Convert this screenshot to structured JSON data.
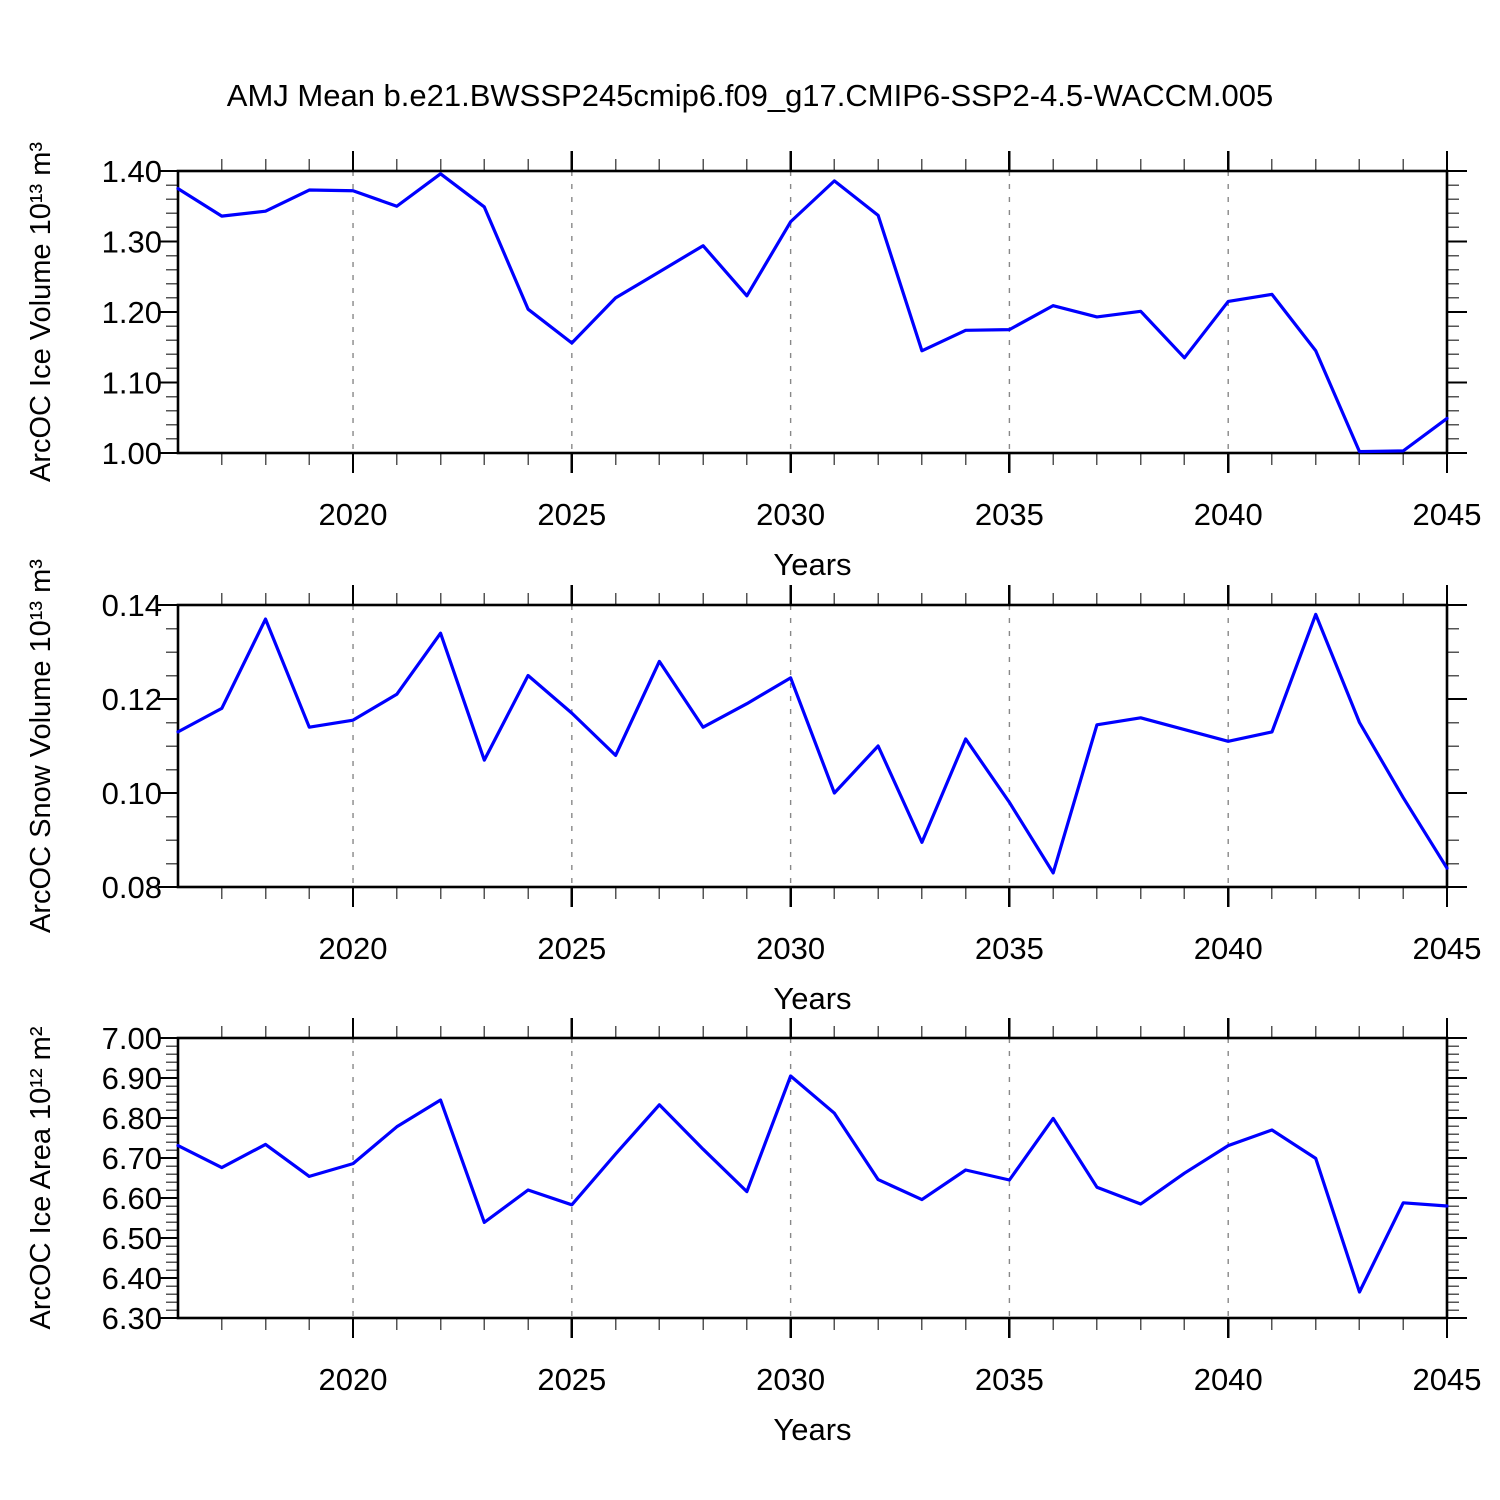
{
  "chart_data": {
    "type": "line",
    "title": "AMJ Mean b.e21.BWSSP245cmip6.f09_g17.CMIP6-SSP2-4.5-WACCM.005",
    "xlabel": "Years",
    "xlim": [
      2016,
      2045
    ],
    "x": [
      2016,
      2017,
      2018,
      2019,
      2020,
      2021,
      2022,
      2023,
      2024,
      2025,
      2026,
      2027,
      2028,
      2029,
      2030,
      2031,
      2032,
      2033,
      2034,
      2035,
      2036,
      2037,
      2038,
      2039,
      2040,
      2041,
      2042,
      2043,
      2044,
      2045
    ],
    "x_major_ticks": [
      2020,
      2025,
      2030,
      2035,
      2040,
      2045
    ],
    "x_minor_step": 1,
    "x_gridlines": [
      2020,
      2025,
      2030,
      2035,
      2040
    ],
    "grid_style": "dashed",
    "legend": "none",
    "colors": {
      "line": "#0000ff",
      "frame": "#000000",
      "gridline": "#888888",
      "minor_tick": "#555555"
    },
    "panels": [
      {
        "name": "ice-volume",
        "ylabel": "ArcOC Ice Volume 10¹³ m³",
        "ylim": [
          1.0,
          1.4
        ],
        "y_major_step": 0.1,
        "y_minor_step": 0.02,
        "y_label_decimals": 2,
        "values": [
          1.375,
          1.336,
          1.343,
          1.373,
          1.372,
          1.35,
          1.396,
          1.349,
          1.204,
          1.156,
          1.22,
          1.257,
          1.294,
          1.223,
          1.328,
          1.386,
          1.337,
          1.145,
          1.174,
          1.175,
          1.209,
          1.193,
          1.201,
          1.135,
          1.215,
          1.225,
          1.145,
          1.002,
          1.003,
          1.049
        ]
      },
      {
        "name": "snow-volume",
        "ylabel": "ArcOC Snow Volume 10¹³ m³",
        "ylim": [
          0.08,
          0.14
        ],
        "y_major_step": 0.02,
        "y_minor_step": 0.005,
        "y_label_decimals": 2,
        "values": [
          0.113,
          0.118,
          0.137,
          0.114,
          0.1155,
          0.121,
          0.134,
          0.107,
          0.125,
          0.117,
          0.108,
          0.128,
          0.114,
          0.119,
          0.1245,
          0.1,
          0.11,
          0.0895,
          0.1115,
          0.098,
          0.083,
          0.1145,
          0.116,
          0.1135,
          0.111,
          0.113,
          0.138,
          0.115,
          0.099,
          0.084
        ]
      },
      {
        "name": "ice-area",
        "ylabel": "ArcOC Ice Area 10¹² m²",
        "ylim": [
          6.3,
          7.0
        ],
        "y_major_step": 0.1,
        "y_minor_step": 0.02,
        "y_label_decimals": 2,
        "values": [
          6.731,
          6.676,
          6.734,
          6.654,
          6.686,
          6.778,
          6.845,
          6.539,
          6.62,
          6.583,
          6.71,
          6.833,
          6.722,
          6.616,
          6.905,
          6.812,
          6.646,
          6.596,
          6.67,
          6.645,
          6.799,
          6.627,
          6.585,
          6.662,
          6.731,
          6.77,
          6.699,
          6.365,
          6.588,
          6.58
        ]
      }
    ]
  }
}
